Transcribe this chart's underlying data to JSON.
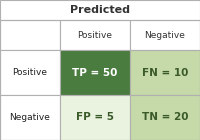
{
  "title": "Predicted",
  "col_labels": [
    "Positive",
    "Negative"
  ],
  "row_labels": [
    "Positive",
    "Negative"
  ],
  "cell_texts": [
    [
      "TP = 50",
      "FN = 10"
    ],
    [
      "FP = 5",
      "TN = 20"
    ]
  ],
  "cell_colors": [
    [
      "#4a7c3f",
      "#c6d9a8"
    ],
    [
      "#eaf3df",
      "#c6d9a8"
    ]
  ],
  "cell_text_colors": [
    [
      "#ffffff",
      "#3a5a2a"
    ],
    [
      "#3a5a2a",
      "#3a5a2a"
    ]
  ],
  "row_label_color": "#222222",
  "col_label_color": "#333333",
  "bg_color": "#ffffff",
  "grid_color": "#b0b0b0",
  "title_fontsize": 8,
  "label_fontsize": 6.5,
  "cell_fontsize": 7.5
}
